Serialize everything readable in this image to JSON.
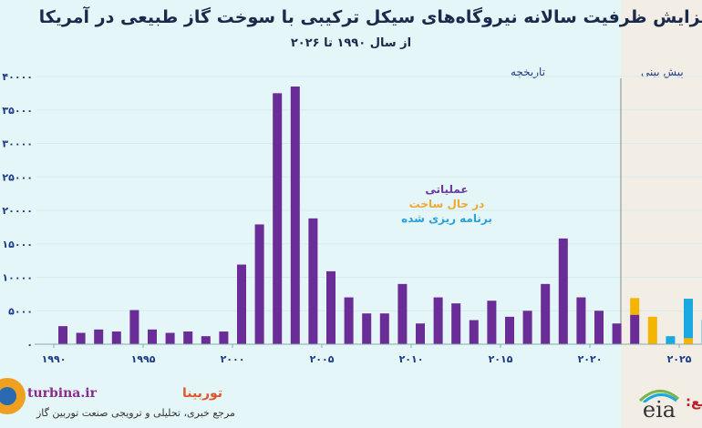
{
  "title": "افزایش ظرفیت سالانه نیروگاه‌های سیکل ترکیبی با سوخت گاز طبیعی در آمریکا",
  "subtitle": "از سال ۱۹۹۰ تا ۲۰۲۶",
  "chart_data": {
    "type": "bar",
    "stacked": true,
    "title": "افزایش ظرفیت سالانه نیروگاه‌های سیکل ترکیبی با سوخت گاز طبیعی در آمریکا",
    "subtitle": "از سال ۱۹۹۰ تا ۲۰۲۶",
    "region_labels": {
      "history": "تاریخچه",
      "forecast": "پیش بینی"
    },
    "categories": [
      1990,
      1991,
      1992,
      1993,
      1994,
      1995,
      1996,
      1997,
      1998,
      1999,
      2000,
      2001,
      2002,
      2003,
      2004,
      2005,
      2006,
      2007,
      2008,
      2009,
      2010,
      2011,
      2012,
      2013,
      2014,
      2015,
      2016,
      2017,
      2018,
      2019,
      2020,
      2021,
      2022,
      2023,
      2024,
      2025,
      2026
    ],
    "series": [
      {
        "name": "عملیاتی",
        "color": "#6a2c96",
        "values": [
          2700,
          1700,
          2200,
          1900,
          5100,
          2200,
          1700,
          1900,
          1200,
          1900,
          11900,
          17900,
          37500,
          38500,
          18800,
          10900,
          7000,
          4600,
          4600,
          9000,
          3100,
          7000,
          6100,
          3600,
          6500,
          4100,
          5000,
          9000,
          15800,
          7000,
          5000,
          3100,
          4400,
          0,
          0,
          0,
          0
        ]
      },
      {
        "name": "در حال ساخت",
        "color": "#f5b400",
        "values": [
          0,
          0,
          0,
          0,
          0,
          0,
          0,
          0,
          0,
          0,
          0,
          0,
          0,
          0,
          0,
          0,
          0,
          0,
          0,
          0,
          0,
          0,
          0,
          0,
          0,
          0,
          0,
          0,
          0,
          0,
          0,
          0,
          2500,
          4100,
          0,
          900,
          0
        ]
      },
      {
        "name": "برنامه ریزی شده",
        "color": "#1aa8e0",
        "values": [
          0,
          0,
          0,
          0,
          0,
          0,
          0,
          0,
          0,
          0,
          0,
          0,
          0,
          0,
          0,
          0,
          0,
          0,
          0,
          0,
          0,
          0,
          0,
          0,
          0,
          0,
          0,
          0,
          0,
          0,
          0,
          0,
          0,
          0,
          1200,
          5900,
          3700
        ]
      }
    ],
    "yticks": [
      "۰",
      "۵۰۰۰",
      "۱۰۰۰۰",
      "۱۵۰۰۰",
      "۲۰۰۰۰",
      "۲۵۰۰۰",
      "۳۰۰۰۰",
      "۳۵۰۰۰",
      "۴۰۰۰۰"
    ],
    "xticks": [
      "۱۹۹۰",
      "۱۹۹۵",
      "۲۰۰۰",
      "۲۰۰۵",
      "۲۰۱۰",
      "۲۰۱۵",
      "۲۰۲۰",
      "۲۰۲۵"
    ],
    "ylim": [
      0,
      40000
    ],
    "grid": true,
    "legend": "center"
  },
  "footer": {
    "brand": "توربینا",
    "brand_url": "turbina.ir",
    "brand_sub": "مرجع خبری، تحلیلی و ترویجی صنعت توربین گاز",
    "source_label": "منبع:",
    "source_logo": "eia"
  }
}
